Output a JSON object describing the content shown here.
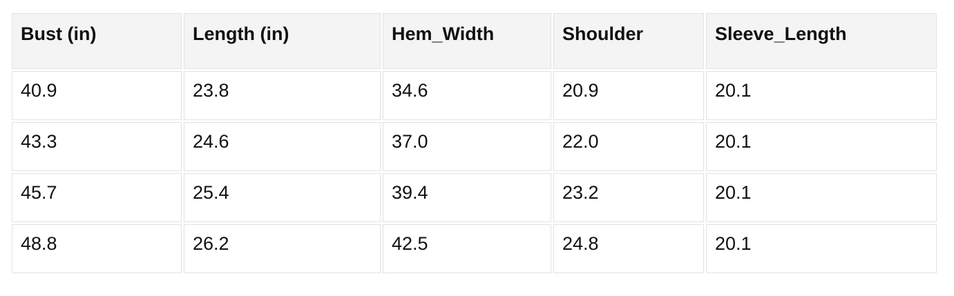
{
  "chart_data": {
    "type": "table",
    "columns": [
      "Bust (in)",
      "Length (in)",
      "Hem_Width",
      "Shoulder",
      "Sleeve_Length"
    ],
    "rows": [
      [
        40.9,
        23.8,
        34.6,
        20.9,
        20.1
      ],
      [
        43.3,
        24.6,
        37.0,
        22.0,
        20.1
      ],
      [
        45.7,
        25.4,
        39.4,
        23.2,
        20.1
      ],
      [
        48.8,
        26.2,
        42.5,
        24.8,
        20.1
      ]
    ]
  },
  "table": {
    "columns": [
      "Bust (in)",
      "Length (in)",
      "Hem_Width",
      "Shoulder",
      "Sleeve_Length"
    ],
    "rows": [
      [
        "40.9",
        "23.8",
        "34.6",
        "20.9",
        "20.1"
      ],
      [
        "43.3",
        "24.6",
        "37.0",
        "22.0",
        "20.1"
      ],
      [
        "45.7",
        "25.4",
        "39.4",
        "23.2",
        "20.1"
      ],
      [
        "48.8",
        "26.2",
        "42.5",
        "24.8",
        "20.1"
      ]
    ]
  },
  "colors": {
    "header_bg": "#f4f4f4",
    "cell_border": "#e2e2e2",
    "text": "#111111",
    "page_bg": "#ffffff"
  }
}
